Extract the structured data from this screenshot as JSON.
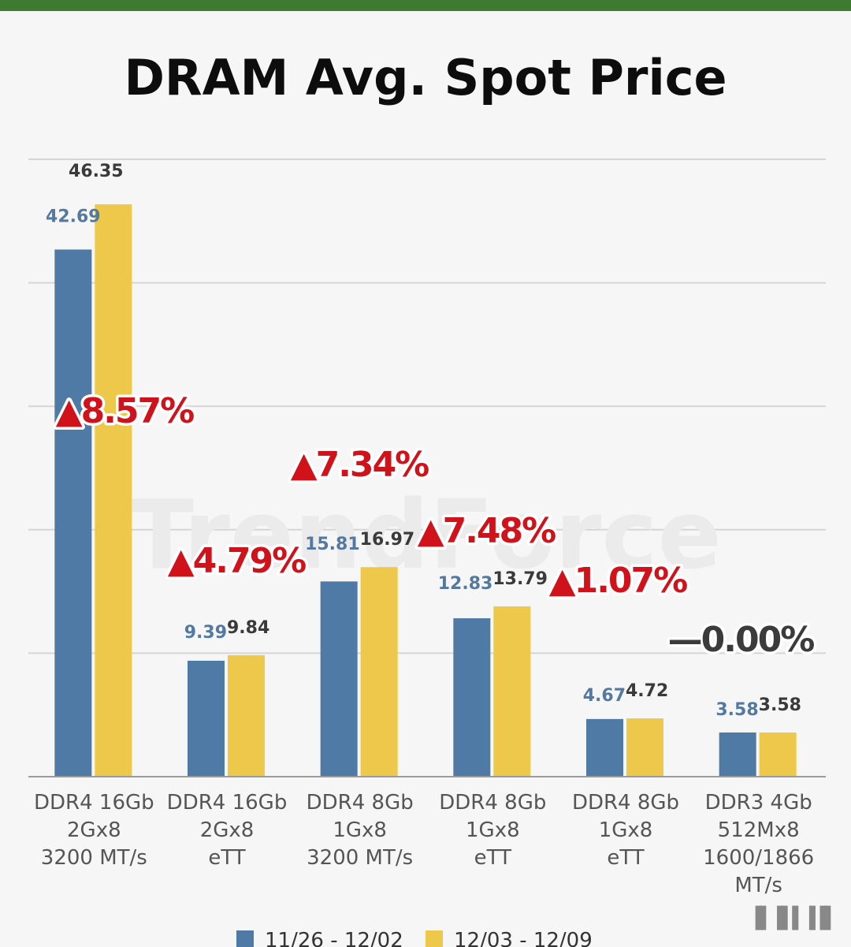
{
  "title": "DRAM Avg. Spot Price",
  "colors": {
    "series0": "#4f7aa5",
    "series1": "#eec84a",
    "up": "#d0121b",
    "flat": "#3b3b3b"
  },
  "watermark": "TrendForce",
  "chart_data": {
    "type": "bar",
    "title": "DRAM Avg. Spot Price",
    "categories": [
      [
        "DDR4 16Gb",
        "2Gx8",
        "3200 MT/s"
      ],
      [
        "DDR4 16Gb",
        "2Gx8",
        "eTT"
      ],
      [
        "DDR4 8Gb",
        "1Gx8",
        "3200 MT/s"
      ],
      [
        "DDR4 8Gb",
        "1Gx8",
        "eTT"
      ],
      [
        "DDR4 8Gb",
        "1Gx8",
        "eTT"
      ],
      [
        "DDR3 4Gb",
        "512Mx8",
        "1600/1866",
        "MT/s"
      ]
    ],
    "series": [
      {
        "name": "11/26 - 12/02",
        "values": [
          42.69,
          9.39,
          15.81,
          12.83,
          4.67,
          3.58
        ],
        "labels": [
          "42.69",
          "9.39",
          "15.81",
          "12.83",
          "4.67",
          "3.58"
        ]
      },
      {
        "name": "12/03 - 12/09",
        "values": [
          46.35,
          9.84,
          16.97,
          13.79,
          4.72,
          3.58
        ],
        "labels": [
          "46.35",
          "9.84",
          "16.97",
          "13.79",
          "4.72",
          "3.58"
        ]
      }
    ],
    "changes": [
      {
        "text": "▲8.57%",
        "direction": "up"
      },
      {
        "text": "▲4.79%",
        "direction": "up"
      },
      {
        "text": "▲7.34%",
        "direction": "up"
      },
      {
        "text": "▲7.48%",
        "direction": "up"
      },
      {
        "text": "▲1.07%",
        "direction": "up"
      },
      {
        "text": "—0.00%",
        "direction": "flat"
      }
    ],
    "xlabel": "",
    "ylabel": "",
    "ylim": [
      0,
      50
    ],
    "grid": true,
    "legend": "bottom"
  }
}
